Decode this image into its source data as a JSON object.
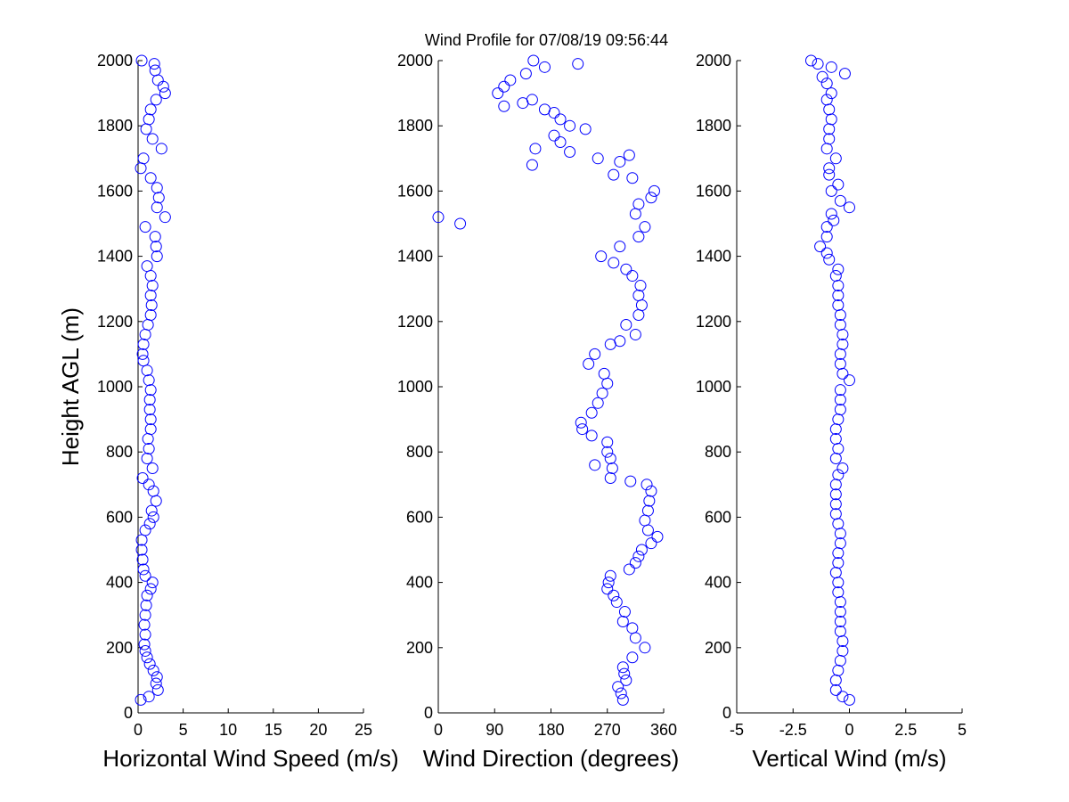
{
  "chart_data": [
    {
      "type": "scatter",
      "color": "#0000ff",
      "x_label": "Horizontal Wind Speed (m/s)",
      "y_label": "Height AGL (m)",
      "xlim": [
        0,
        25
      ],
      "xticks": [
        0,
        5,
        10,
        15,
        20,
        25
      ],
      "ylim": [
        0,
        2000
      ],
      "yticks": [
        0,
        200,
        400,
        600,
        800,
        1000,
        1200,
        1400,
        1600,
        1800,
        2000
      ],
      "x": [
        0.3,
        1.2,
        2.2,
        2.0,
        2.1,
        1.7,
        1.3,
        1.0,
        0.8,
        0.7,
        0.8,
        0.7,
        0.8,
        0.9,
        1.0,
        1.4,
        1.6,
        0.8,
        0.6,
        0.5,
        0.4,
        0.4,
        0.8,
        1.3,
        1.7,
        1.5,
        2.0,
        1.7,
        1.2,
        0.5,
        1.6,
        1.0,
        1.2,
        1.1,
        1.4,
        1.4,
        1.3,
        1.3,
        1.4,
        1.2,
        1.0,
        0.6,
        0.5,
        0.6,
        0.8,
        1.1,
        1.4,
        1.5,
        1.4,
        1.6,
        1.4,
        1.0,
        2.1,
        2.0,
        1.9,
        0.8,
        3.0,
        2.1,
        2.3,
        2.1,
        1.4,
        0.3,
        0.6,
        2.6,
        1.6,
        0.9,
        1.2,
        1.4,
        2.0,
        3.0,
        2.8,
        2.2,
        1.9,
        1.8,
        0.4
      ],
      "values": [
        40,
        50,
        70,
        90,
        110,
        130,
        150,
        170,
        190,
        210,
        240,
        270,
        300,
        330,
        360,
        380,
        400,
        420,
        440,
        470,
        500,
        530,
        560,
        580,
        600,
        620,
        650,
        680,
        700,
        720,
        750,
        780,
        810,
        840,
        870,
        900,
        930,
        960,
        990,
        1020,
        1050,
        1080,
        1100,
        1130,
        1160,
        1190,
        1220,
        1250,
        1280,
        1310,
        1340,
        1370,
        1400,
        1430,
        1460,
        1490,
        1520,
        1550,
        1580,
        1610,
        1640,
        1670,
        1700,
        1730,
        1760,
        1790,
        1820,
        1850,
        1880,
        1900,
        1920,
        1940,
        1970,
        1990,
        2000
      ]
    },
    {
      "type": "scatter",
      "color": "#0000ff",
      "title": "Wind Profile for  07/08/19 09:56:44",
      "x_label": "Wind Direction (degrees)",
      "xlim": [
        0,
        360
      ],
      "xticks": [
        0,
        90,
        180,
        270,
        360
      ],
      "ylim": [
        0,
        2000
      ],
      "yticks": [
        0,
        200,
        400,
        600,
        800,
        1000,
        1200,
        1400,
        1600,
        1800,
        2000
      ],
      "x": [
        295,
        292,
        287,
        300,
        297,
        295,
        310,
        330,
        315,
        310,
        295,
        298,
        285,
        280,
        270,
        272,
        275,
        305,
        315,
        320,
        325,
        340,
        350,
        335,
        330,
        335,
        337,
        340,
        333,
        307,
        275,
        278,
        250,
        275,
        270,
        270,
        245,
        230,
        228,
        245,
        255,
        262,
        270,
        265,
        240,
        250,
        275,
        290,
        315,
        300,
        320,
        325,
        320,
        323,
        310,
        300,
        280,
        260,
        290,
        320,
        330,
        35,
        0,
        315,
        320,
        340,
        345,
        310,
        280,
        150,
        290,
        255,
        305,
        210,
        155,
        195,
        185,
        235,
        210,
        195,
        185,
        170,
        105,
        135,
        150,
        95,
        105,
        115,
        140,
        170,
        223,
        152
      ],
      "values": [
        40,
        60,
        80,
        100,
        120,
        140,
        170,
        200,
        230,
        260,
        280,
        310,
        340,
        360,
        380,
        400,
        420,
        440,
        460,
        480,
        500,
        520,
        540,
        560,
        590,
        620,
        650,
        680,
        700,
        710,
        720,
        750,
        760,
        780,
        800,
        830,
        850,
        870,
        890,
        920,
        950,
        980,
        1010,
        1040,
        1070,
        1100,
        1130,
        1140,
        1160,
        1190,
        1220,
        1250,
        1280,
        1310,
        1340,
        1360,
        1380,
        1400,
        1430,
        1460,
        1490,
        1500,
        1520,
        1530,
        1560,
        1580,
        1600,
        1640,
        1650,
        1680,
        1690,
        1700,
        1710,
        1720,
        1730,
        1750,
        1770,
        1790,
        1800,
        1820,
        1840,
        1850,
        1860,
        1870,
        1880,
        1900,
        1920,
        1940,
        1960,
        1980,
        1990,
        2000
      ]
    },
    {
      "type": "scatter",
      "color": "#0000ff",
      "x_label": "Vertical Wind (m/s)",
      "xlim": [
        -5,
        5
      ],
      "xticks": [
        -5,
        -2.5,
        0,
        2.5,
        5
      ],
      "ylim": [
        0,
        2000
      ],
      "yticks": [
        0,
        200,
        400,
        600,
        800,
        1000,
        1200,
        1400,
        1600,
        1800,
        2000
      ],
      "x": [
        0.0,
        -0.3,
        -0.6,
        -0.6,
        -0.5,
        -0.4,
        -0.3,
        -0.3,
        -0.4,
        -0.4,
        -0.4,
        -0.4,
        -0.5,
        -0.5,
        -0.6,
        -0.5,
        -0.5,
        -0.4,
        -0.4,
        -0.5,
        -0.6,
        -0.6,
        -0.6,
        -0.6,
        -0.5,
        -0.3,
        -0.6,
        -0.5,
        -0.6,
        -0.6,
        -0.5,
        -0.4,
        -0.4,
        -0.4,
        0.0,
        -0.3,
        -0.4,
        -0.4,
        -0.3,
        -0.3,
        -0.4,
        -0.4,
        -0.5,
        -0.5,
        -0.5,
        -0.6,
        -0.5,
        -0.9,
        -1.0,
        -1.3,
        -1.0,
        -1.0,
        -0.7,
        -0.8,
        0.0,
        -0.4,
        -0.8,
        -0.5,
        -0.9,
        -0.9,
        -0.6,
        -1.0,
        -0.9,
        -0.9,
        -0.8,
        -0.9,
        -1.0,
        -0.8,
        -1.0,
        -1.2,
        -0.2,
        -0.8,
        -1.4,
        -1.7
      ],
      "values": [
        40,
        50,
        70,
        100,
        130,
        160,
        190,
        220,
        250,
        280,
        310,
        340,
        370,
        400,
        430,
        460,
        490,
        520,
        550,
        580,
        610,
        640,
        670,
        700,
        730,
        750,
        780,
        810,
        840,
        870,
        900,
        930,
        960,
        990,
        1020,
        1040,
        1070,
        1100,
        1130,
        1160,
        1190,
        1220,
        1250,
        1280,
        1310,
        1340,
        1360,
        1390,
        1410,
        1430,
        1460,
        1490,
        1510,
        1530,
        1550,
        1570,
        1600,
        1620,
        1650,
        1670,
        1700,
        1730,
        1760,
        1790,
        1820,
        1850,
        1880,
        1900,
        1930,
        1950,
        1960,
        1980,
        1990,
        2000
      ]
    }
  ]
}
